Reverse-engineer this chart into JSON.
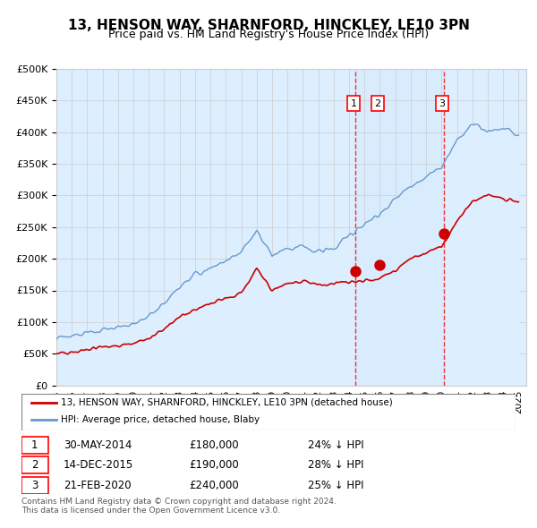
{
  "title": "13, HENSON WAY, SHARNFORD, HINCKLEY, LE10 3PN",
  "subtitle": "Price paid vs. HM Land Registry's House Price Index (HPI)",
  "xmin": 1995.0,
  "xmax": 2025.5,
  "ymin": 0,
  "ymax": 500000,
  "yticks": [
    0,
    50000,
    100000,
    150000,
    200000,
    250000,
    300000,
    350000,
    400000,
    450000,
    500000
  ],
  "xticks": [
    1995,
    1996,
    1997,
    1998,
    1999,
    2000,
    2001,
    2002,
    2003,
    2004,
    2005,
    2006,
    2007,
    2008,
    2009,
    2010,
    2011,
    2012,
    2013,
    2014,
    2015,
    2016,
    2017,
    2018,
    2019,
    2020,
    2021,
    2022,
    2023,
    2024,
    2025
  ],
  "red_line_color": "#cc0000",
  "blue_line_color": "#6699cc",
  "blue_fill_color": "#ddeeff",
  "background_color": "#ffffff",
  "grid_color": "#cccccc",
  "purchase_points": [
    {
      "label": "1",
      "date": 2014.41,
      "price": 180000,
      "x_label": 2014.3
    },
    {
      "label": "2",
      "date": 2015.95,
      "price": 190000,
      "x_label": 2015.85
    },
    {
      "label": "3",
      "date": 2020.13,
      "price": 240000,
      "x_label": 2020.03
    }
  ],
  "legend_line1": "13, HENSON WAY, SHARNFORD, HINCKLEY, LE10 3PN (detached house)",
  "legend_line2": "HPI: Average price, detached house, Blaby",
  "table_rows": [
    {
      "num": "1",
      "date": "30-MAY-2014",
      "price": "£180,000",
      "pct": "24% ↓ HPI"
    },
    {
      "num": "2",
      "date": "14-DEC-2015",
      "price": "£190,000",
      "pct": "28% ↓ HPI"
    },
    {
      "num": "3",
      "date": "21-FEB-2020",
      "price": "£240,000",
      "pct": "25% ↓ HPI"
    }
  ],
  "footnote": "Contains HM Land Registry data © Crown copyright and database right 2024.\nThis data is licensed under the Open Government Licence v3.0."
}
